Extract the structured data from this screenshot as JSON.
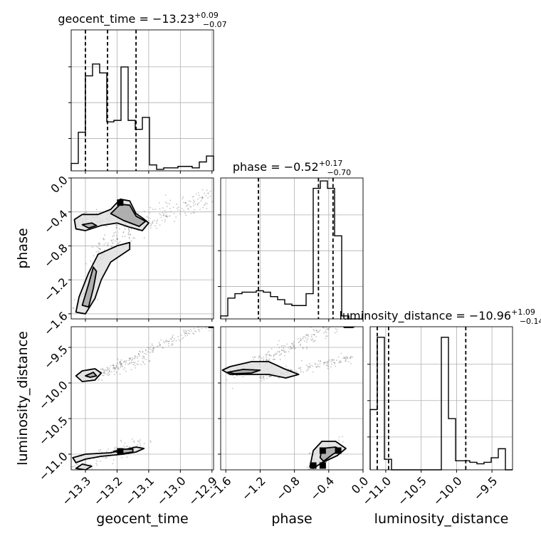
{
  "chart_data": {
    "type": "corner",
    "parameters": [
      "geocent_time",
      "phase",
      "luminosity_distance"
    ],
    "x_ranges": [
      [
        -13.345,
        -12.895
      ],
      [
        -1.66,
        0.0
      ],
      [
        -11.22,
        -9.21
      ]
    ],
    "grid": true,
    "colors": {
      "line": "#000000",
      "grid": "#b0b0b0",
      "sample": "#555555",
      "fill_light": "#dcdcdc",
      "fill_mid": "#a8a8a8",
      "fill_dark": "#000000"
    },
    "marginals": [
      {
        "parameter": "geocent_time",
        "title_main": "geocent_time = −13.23",
        "title_sup": "+0.09",
        "title_sub": "−0.07",
        "quantiles": [
          -13.3,
          -13.23,
          -13.14
        ],
        "bins": [
          -13.345,
          -13.3225,
          -13.3,
          -13.2775,
          -13.255,
          -13.2325,
          -13.21,
          -13.1875,
          -13.165,
          -13.1425,
          -13.12,
          -13.0975,
          -13.075,
          -13.0525,
          -13.03,
          -13.0075,
          -12.985,
          -12.9625,
          -12.94,
          -12.9175,
          -12.895
        ],
        "counts": [
          0.05,
          0.26,
          0.64,
          0.72,
          0.66,
          0.33,
          0.34,
          0.7,
          0.34,
          0.28,
          0.36,
          0.04,
          0.01,
          0.02,
          0.02,
          0.03,
          0.03,
          0.02,
          0.06,
          0.1
        ]
      },
      {
        "parameter": "phase",
        "title_main": "phase = −0.52",
        "title_sup": "+0.17",
        "title_sub": "−0.70",
        "quantiles": [
          -1.22,
          -0.52,
          -0.35
        ],
        "bins": [
          -1.66,
          -1.577,
          -1.494,
          -1.411,
          -1.328,
          -1.245,
          -1.162,
          -1.079,
          -0.996,
          -0.913,
          -0.83,
          -0.747,
          -0.664,
          -0.581,
          -0.498,
          -0.415,
          -0.332,
          -0.249,
          -0.166,
          -0.083,
          0.0
        ],
        "counts": [
          0.02,
          0.14,
          0.17,
          0.18,
          0.18,
          0.19,
          0.18,
          0.15,
          0.13,
          0.1,
          0.09,
          0.09,
          0.17,
          0.88,
          0.93,
          0.88,
          0.56,
          0.02,
          0.0,
          0.0
        ]
      },
      {
        "parameter": "luminosity_distance",
        "title_main": "luminosity_distance = −10.96",
        "title_sup": "+1.09",
        "title_sub": "−0.14",
        "quantiles": [
          -11.12,
          -10.96,
          -9.87
        ],
        "bins": [
          -11.22,
          -11.1195,
          -11.019,
          -10.9185,
          -10.818,
          -10.7175,
          -10.617,
          -10.5165,
          -10.416,
          -10.3155,
          -10.215,
          -10.1145,
          -10.014,
          -9.9135,
          -9.813,
          -9.7125,
          -9.612,
          -9.5115,
          -9.411,
          -9.3105,
          -9.21
        ],
        "counts": [
          0.4,
          0.88,
          0.07,
          0.0,
          0.0,
          0.0,
          0.0,
          0.0,
          0.0,
          0.0,
          0.88,
          0.34,
          0.06,
          0.06,
          0.05,
          0.04,
          0.05,
          0.08,
          0.14,
          0.0
        ]
      }
    ],
    "axes": {
      "geocent_time": {
        "label": "geocent_time",
        "range": [
          -13.345,
          -12.895
        ],
        "ticks": [
          -13.3,
          -13.2,
          -13.1,
          -13.0,
          -12.9
        ],
        "tick_labels": [
          "−13.3",
          "−13.2",
          "−13.1",
          "−13.0",
          "−12.9"
        ]
      },
      "phase_x": {
        "label": "phase",
        "range": [
          -1.66,
          0.0
        ],
        "ticks": [
          -1.6,
          -1.2,
          -0.8,
          -0.4,
          0.0
        ],
        "tick_labels": [
          "−1.6",
          "−1.2",
          "−0.8",
          "−0.4",
          "0.0"
        ]
      },
      "phase_y": {
        "label": "phase",
        "range": [
          -1.66,
          0.0
        ],
        "ticks": [
          0.0,
          -0.4,
          -0.8,
          -1.2,
          -1.6
        ],
        "tick_labels": [
          "0.0",
          "−0.4",
          "−0.8",
          "−1.2",
          "−1.6"
        ]
      },
      "luminosity_distance_x": {
        "label": "luminosity_distance",
        "range": [
          -11.22,
          -9.21
        ],
        "ticks": [
          -11.0,
          -10.5,
          -10.0,
          -9.5
        ],
        "tick_labels": [
          "−11.0",
          "−10.5",
          "−10.0",
          "−9.5"
        ]
      },
      "luminosity_distance_y": {
        "label": "luminosity_distance",
        "range": [
          -11.22,
          -9.21
        ],
        "ticks": [
          -9.5,
          -10.0,
          -10.5,
          -11.0
        ],
        "tick_labels": [
          "−9.5",
          "−10.0",
          "−10.5",
          "−11.0"
        ]
      }
    },
    "samples_2d": [
      {
        "x": "geocent_time",
        "y": "phase",
        "clusters": [
          {
            "x0": -13.325,
            "y0": -0.48,
            "x1": -13.13,
            "y1": -0.48,
            "spread_x": 0.03,
            "spread_y": 0.06,
            "n": 80
          },
          {
            "x0": -13.17,
            "y0": -0.62,
            "x1": -12.9,
            "y1": -0.22,
            "spread_x": 0.02,
            "spread_y": 0.06,
            "n": 160
          },
          {
            "x0": -13.32,
            "y0": -1.55,
            "x1": -13.25,
            "y1": -0.85,
            "spread_x": 0.015,
            "spread_y": 0.05,
            "n": 70
          },
          {
            "x0": -13.26,
            "y0": -0.88,
            "x1": -13.17,
            "y1": -0.62,
            "spread_x": 0.02,
            "spread_y": 0.05,
            "n": 60
          }
        ],
        "contours": [
          {
            "level": "outer",
            "points": [
              [
                -13.335,
                -0.49
              ],
              [
                -13.31,
                -0.43
              ],
              [
                -13.26,
                -0.43
              ],
              [
                -13.22,
                -0.37
              ],
              [
                -13.19,
                -0.25
              ],
              [
                -13.16,
                -0.27
              ],
              [
                -13.14,
                -0.42
              ],
              [
                -13.12,
                -0.47
              ],
              [
                -13.1,
                -0.53
              ],
              [
                -13.12,
                -0.62
              ],
              [
                -13.16,
                -0.58
              ],
              [
                -13.2,
                -0.53
              ],
              [
                -13.25,
                -0.56
              ],
              [
                -13.3,
                -0.62
              ],
              [
                -13.33,
                -0.6
              ]
            ]
          },
          {
            "level": "inner",
            "points": [
              [
                -13.22,
                -0.42
              ],
              [
                -13.19,
                -0.31
              ],
              [
                -13.16,
                -0.32
              ],
              [
                -13.14,
                -0.45
              ],
              [
                -13.11,
                -0.51
              ],
              [
                -13.13,
                -0.57
              ],
              [
                -13.18,
                -0.5
              ]
            ]
          },
          {
            "level": "inner",
            "points": [
              [
                -13.31,
                -0.55
              ],
              [
                -13.28,
                -0.53
              ],
              [
                -13.265,
                -0.56
              ],
              [
                -13.29,
                -0.59
              ]
            ]
          },
          {
            "level": "outer",
            "points": [
              [
                -13.33,
                -1.58
              ],
              [
                -13.32,
                -1.4
              ],
              [
                -13.29,
                -1.12
              ],
              [
                -13.26,
                -0.9
              ],
              [
                -13.2,
                -0.8
              ],
              [
                -13.16,
                -0.76
              ],
              [
                -13.16,
                -0.84
              ],
              [
                -13.22,
                -0.99
              ],
              [
                -13.25,
                -1.2
              ],
              [
                -13.27,
                -1.42
              ],
              [
                -13.3,
                -1.6
              ]
            ]
          },
          {
            "level": "inner",
            "points": [
              [
                -13.31,
                -1.5
              ],
              [
                -13.29,
                -1.25
              ],
              [
                -13.275,
                -1.05
              ],
              [
                -13.265,
                -1.1
              ],
              [
                -13.275,
                -1.3
              ],
              [
                -13.29,
                -1.52
              ]
            ]
          }
        ],
        "dense_cells": [
          [
            -13.19,
            -0.29
          ]
        ]
      },
      {
        "x": "geocent_time",
        "y": "luminosity_distance",
        "clusters": [
          {
            "x0": -13.33,
            "y0": -11.2,
            "x1": -13.13,
            "y1": -10.82,
            "spread_x": 0.02,
            "spread_y": 0.04,
            "n": 90
          },
          {
            "x0": -13.285,
            "y0": -9.93,
            "x1": -12.9,
            "y1": -9.13,
            "spread_x": 0.01,
            "spread_y": 0.03,
            "n": 200
          },
          {
            "x0": -13.28,
            "y0": -9.92,
            "x1": -13.12,
            "y1": -9.68,
            "spread_x": 0.02,
            "spread_y": 0.04,
            "n": 70
          }
        ],
        "contours": [
          {
            "level": "outer",
            "points": [
              [
                -13.33,
                -9.9
              ],
              [
                -13.31,
                -9.83
              ],
              [
                -13.27,
                -9.8
              ],
              [
                -13.25,
                -9.86
              ],
              [
                -13.27,
                -9.96
              ],
              [
                -13.31,
                -9.98
              ]
            ]
          },
          {
            "level": "inner",
            "points": [
              [
                -13.3,
                -9.9
              ],
              [
                -13.275,
                -9.85
              ],
              [
                -13.265,
                -9.9
              ],
              [
                -13.285,
                -9.92
              ]
            ]
          },
          {
            "level": "outer",
            "points": [
              [
                -13.34,
                -11.05
              ],
              [
                -13.3,
                -11.0
              ],
              [
                -13.22,
                -10.98
              ],
              [
                -13.14,
                -10.9
              ],
              [
                -13.115,
                -10.92
              ],
              [
                -13.14,
                -10.97
              ],
              [
                -13.18,
                -11.0
              ],
              [
                -13.25,
                -11.03
              ],
              [
                -13.3,
                -11.07
              ],
              [
                -13.33,
                -11.12
              ]
            ]
          },
          {
            "level": "inner",
            "points": [
              [
                -13.21,
                -10.96
              ],
              [
                -13.18,
                -10.93
              ],
              [
                -13.15,
                -10.93
              ],
              [
                -13.15,
                -10.97
              ],
              [
                -13.18,
                -10.99
              ]
            ]
          },
          {
            "level": "outer",
            "points": [
              [
                -13.33,
                -11.2
              ],
              [
                -13.31,
                -11.14
              ],
              [
                -13.28,
                -11.17
              ],
              [
                -13.3,
                -11.22
              ]
            ]
          },
          {
            "level": "outer",
            "points": [
              [
                -12.91,
                -9.15
              ],
              [
                -12.895,
                -9.08
              ],
              [
                -12.89,
                -9.22
              ],
              [
                -12.91,
                -9.22
              ]
            ]
          }
        ],
        "dense_cells": [
          [
            -13.19,
            -10.96
          ]
        ]
      },
      {
        "x": "phase",
        "y": "luminosity_distance",
        "clusters": [
          {
            "x0": -1.5,
            "y0": -9.9,
            "x1": -0.25,
            "y1": -9.12,
            "spread_x": 0.05,
            "spread_y": 0.05,
            "n": 220
          },
          {
            "x0": -1.2,
            "y0": -9.93,
            "x1": -0.15,
            "y1": -9.65,
            "spread_x": 0.04,
            "spread_y": 0.03,
            "n": 140
          },
          {
            "x0": -0.6,
            "y0": -11.2,
            "x1": -0.25,
            "y1": -10.8,
            "spread_x": 0.05,
            "spread_y": 0.05,
            "n": 60
          }
        ],
        "contours": [
          {
            "level": "outer",
            "points": [
              [
                -1.64,
                -9.82
              ],
              [
                -1.55,
                -9.77
              ],
              [
                -1.3,
                -9.7
              ],
              [
                -1.1,
                -9.7
              ],
              [
                -0.92,
                -9.8
              ],
              [
                -0.75,
                -9.88
              ],
              [
                -0.9,
                -9.93
              ],
              [
                -1.1,
                -9.88
              ],
              [
                -1.35,
                -9.88
              ],
              [
                -1.55,
                -9.88
              ]
            ]
          },
          {
            "level": "inner",
            "points": [
              [
                -1.58,
                -9.85
              ],
              [
                -1.4,
                -9.81
              ],
              [
                -1.2,
                -9.82
              ],
              [
                -1.3,
                -9.86
              ],
              [
                -1.5,
                -9.87
              ]
            ]
          },
          {
            "level": "outer",
            "points": [
              [
                -0.62,
                -11.18
              ],
              [
                -0.58,
                -10.95
              ],
              [
                -0.48,
                -10.82
              ],
              [
                -0.32,
                -10.82
              ],
              [
                -0.2,
                -10.92
              ],
              [
                -0.3,
                -11.02
              ],
              [
                -0.48,
                -11.12
              ],
              [
                -0.58,
                -11.2
              ]
            ]
          },
          {
            "level": "inner",
            "points": [
              [
                -0.5,
                -11.05
              ],
              [
                -0.48,
                -10.92
              ],
              [
                -0.32,
                -10.9
              ],
              [
                -0.26,
                -10.94
              ],
              [
                -0.35,
                -11.0
              ],
              [
                -0.46,
                -11.1
              ]
            ]
          },
          {
            "level": "outer",
            "points": [
              [
                -0.25,
                -9.15
              ],
              [
                -0.1,
                -9.12
              ],
              [
                -0.02,
                -9.16
              ],
              [
                -0.12,
                -9.22
              ],
              [
                -0.22,
                -9.22
              ]
            ]
          }
        ],
        "dense_cells": [
          [
            -0.47,
            -10.95
          ],
          [
            -0.29,
            -10.95
          ],
          [
            -0.47,
            -11.16
          ],
          [
            -0.58,
            -11.16
          ]
        ]
      }
    ]
  }
}
